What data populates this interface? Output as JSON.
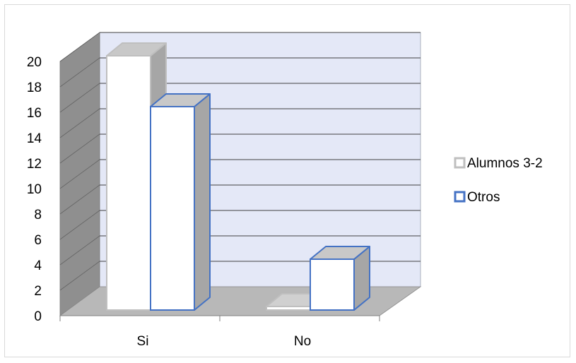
{
  "chart_data": {
    "type": "bar",
    "style": "3d-clustered-column",
    "categories": [
      "Si",
      "No"
    ],
    "series": [
      {
        "name": "Alumnos 3-2",
        "values": [
          20,
          0
        ]
      },
      {
        "name": "Otros",
        "values": [
          16,
          4
        ]
      }
    ],
    "ylim": [
      0,
      20
    ],
    "yticks": [
      "0",
      "2",
      "4",
      "6",
      "8",
      "10",
      "12",
      "14",
      "16",
      "18",
      "20"
    ],
    "grid": true,
    "legend_position": "right",
    "colors": {
      "back_wall": "#e4e8f7",
      "side_wall": "#8f8f8f",
      "floor": "#b8b8b8",
      "gridline": "#404040",
      "series_fill": "#ffffff",
      "series1_edge": "#bfbfbf",
      "series1_side": "#a6a6a6",
      "series2_edge": "#4472c4",
      "series2_side": "#a6a6a6"
    }
  }
}
